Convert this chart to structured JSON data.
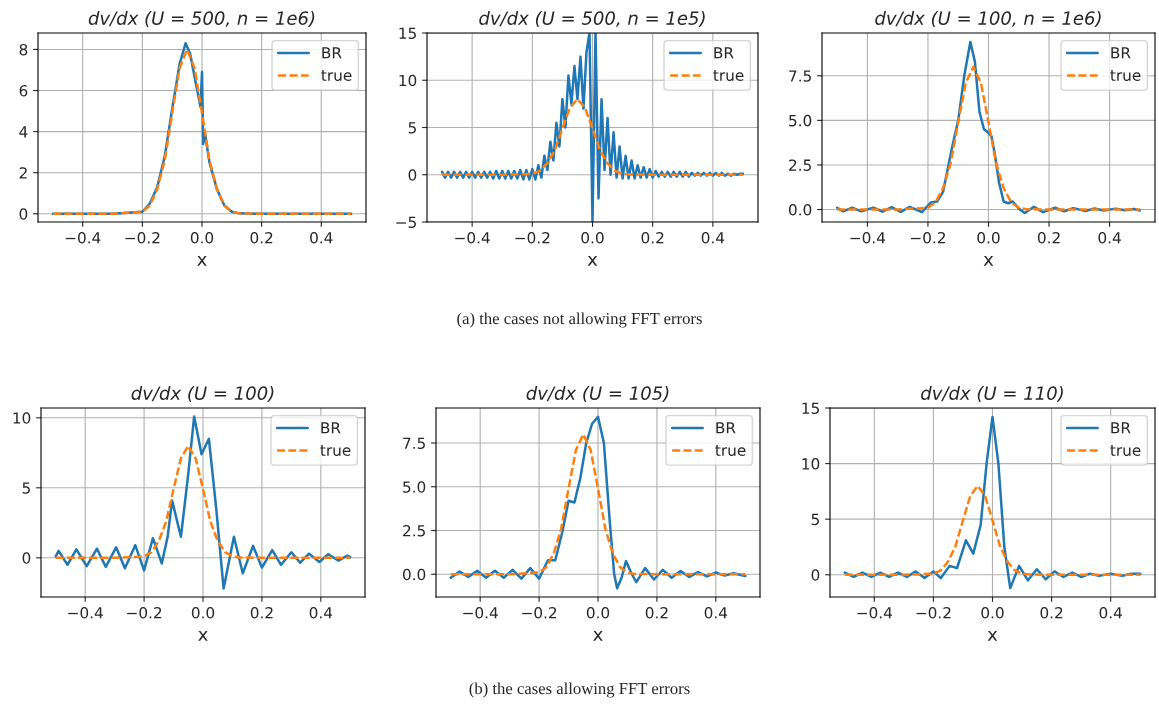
{
  "chart_data": [
    {
      "type": "line",
      "title": "dv/dx (U = 500, n = 1e6)",
      "xlabel": "x",
      "xlim": [
        -0.55,
        0.55
      ],
      "ylim": [
        -0.4,
        8.8
      ],
      "xticks": [
        {
          "value": -0.4,
          "label": "−0.4"
        },
        {
          "value": -0.2,
          "label": "−0.2"
        },
        {
          "value": 0,
          "label": "0.0"
        },
        {
          "value": 0.2,
          "label": "0.2"
        },
        {
          "value": 0.4,
          "label": "0.4"
        }
      ],
      "yticks": [
        {
          "value": 0,
          "label": "0"
        },
        {
          "value": 2,
          "label": "2"
        },
        {
          "value": 4,
          "label": "4"
        },
        {
          "value": 6,
          "label": "6"
        },
        {
          "value": 8,
          "label": "8"
        }
      ],
      "grid": true,
      "legend": "top right",
      "series": [
        {
          "name": "BR",
          "color": "#1f77b4",
          "line_style": "solid",
          "x": [
            -0.5,
            -0.3,
            -0.2,
            -0.175,
            -0.15,
            -0.125,
            -0.1,
            -0.075,
            -0.055,
            -0.04,
            -0.02,
            -0.005,
            0,
            0.004,
            0.01,
            0.025,
            0.05,
            0.075,
            0.1,
            0.125,
            0.2,
            0.3,
            0.5
          ],
          "values": [
            0,
            0,
            0.1,
            0.5,
            1.3,
            2.8,
            5.1,
            7.3,
            8.3,
            7.8,
            6.3,
            5.2,
            6.9,
            3.4,
            3.9,
            2.5,
            1.2,
            0.4,
            0.1,
            0.02,
            0,
            0,
            0
          ]
        },
        {
          "name": "true",
          "color": "#ff7f0e",
          "line_style": "dashed",
          "x": [
            -0.5,
            -0.3,
            -0.2,
            -0.175,
            -0.15,
            -0.125,
            -0.1,
            -0.075,
            -0.05,
            -0.025,
            0,
            0.025,
            0.05,
            0.075,
            0.1,
            0.125,
            0.2,
            0.3,
            0.5
          ],
          "values": [
            0,
            0,
            0.1,
            0.4,
            1.2,
            2.6,
            4.9,
            7.1,
            8,
            7.1,
            4.9,
            2.6,
            1.2,
            0.4,
            0.1,
            0.02,
            0,
            0,
            0
          ]
        }
      ]
    },
    {
      "type": "line",
      "title": "dv/dx (U = 500, n = 1e5)",
      "xlabel": "x",
      "xlim": [
        -0.55,
        0.55
      ],
      "ylim": [
        -5,
        15
      ],
      "xticks": [
        {
          "value": -0.4,
          "label": "−0.4"
        },
        {
          "value": -0.2,
          "label": "−0.2"
        },
        {
          "value": 0,
          "label": "0.0"
        },
        {
          "value": 0.2,
          "label": "0.2"
        },
        {
          "value": 0.4,
          "label": "0.4"
        }
      ],
      "yticks": [
        {
          "value": -5,
          "label": "−5"
        },
        {
          "value": 0,
          "label": "0"
        },
        {
          "value": 5,
          "label": "5"
        },
        {
          "value": 10,
          "label": "10"
        },
        {
          "value": 15,
          "label": "15"
        }
      ],
      "grid": true,
      "legend": "top right",
      "annotations": [
        "(a) the cases not allowing FFT errors"
      ],
      "series": [
        {
          "name": "BR",
          "color": "#1f77b4",
          "line_style": "solid",
          "x": [
            -0.5,
            -0.49,
            -0.48,
            -0.47,
            -0.46,
            -0.45,
            -0.44,
            -0.43,
            -0.42,
            -0.41,
            -0.4,
            -0.39,
            -0.38,
            -0.37,
            -0.36,
            -0.35,
            -0.34,
            -0.33,
            -0.32,
            -0.31,
            -0.3,
            -0.29,
            -0.28,
            -0.27,
            -0.26,
            -0.25,
            -0.24,
            -0.23,
            -0.22,
            -0.21,
            -0.2,
            -0.19,
            -0.18,
            -0.17,
            -0.16,
            -0.15,
            -0.14,
            -0.13,
            -0.12,
            -0.11,
            -0.1,
            -0.09,
            -0.08,
            -0.07,
            -0.06,
            -0.05,
            -0.04,
            -0.03,
            -0.02,
            -0.01,
            0,
            0.01,
            0.02,
            0.03,
            0.04,
            0.05,
            0.06,
            0.07,
            0.08,
            0.09,
            0.1,
            0.11,
            0.12,
            0.13,
            0.14,
            0.15,
            0.16,
            0.17,
            0.18,
            0.19,
            0.2,
            0.21,
            0.22,
            0.23,
            0.24,
            0.25,
            0.26,
            0.27,
            0.28,
            0.29,
            0.3,
            0.31,
            0.32,
            0.33,
            0.34,
            0.35,
            0.36,
            0.37,
            0.38,
            0.39,
            0.4,
            0.41,
            0.42,
            0.43,
            0.44,
            0.45,
            0.46,
            0.47,
            0.48,
            0.49,
            0.5
          ],
          "values": [
            0.3,
            -0.3,
            0.3,
            -0.3,
            0.3,
            -0.3,
            0.3,
            -0.3,
            0.3,
            -0.3,
            0.3,
            -0.3,
            0.3,
            -0.3,
            0.3,
            -0.3,
            0.3,
            -0.4,
            0.4,
            -0.4,
            0.4,
            -0.4,
            0.4,
            -0.4,
            0.4,
            -0.4,
            0.5,
            -0.5,
            0.5,
            -0.5,
            0.6,
            -0.5,
            1.0,
            -0.3,
            2.0,
            0.5,
            3.5,
            1.5,
            5.5,
            3.0,
            8.0,
            5.0,
            10.5,
            7.5,
            11.5,
            8.0,
            12.5,
            7.0,
            13.0,
            15,
            -5,
            15,
            -2.5,
            8,
            0.5,
            6,
            0,
            4.5,
            -0.3,
            3,
            -0.4,
            2,
            -0.4,
            1.5,
            -0.4,
            1.0,
            -0.3,
            0.8,
            -0.3,
            0.6,
            -0.3,
            0.4,
            -0.2,
            0.3,
            -0.2,
            0.3,
            -0.2,
            0.3,
            -0.2,
            0.3,
            -0.2,
            0.3,
            -0.2,
            0.2,
            -0.1,
            0.2,
            -0.1,
            0.2,
            -0.1,
            0.2,
            -0.1,
            0.2,
            -0.1,
            0.2,
            -0.1,
            0.1,
            -0.1,
            0.1,
            0,
            0.1,
            0.1
          ]
        },
        {
          "name": "true",
          "color": "#ff7f0e",
          "line_style": "dashed",
          "x": [
            -0.5,
            -0.3,
            -0.2,
            -0.175,
            -0.15,
            -0.125,
            -0.1,
            -0.075,
            -0.05,
            -0.025,
            0,
            0.025,
            0.05,
            0.075,
            0.1,
            0.125,
            0.2,
            0.3,
            0.5
          ],
          "values": [
            0,
            0,
            0.1,
            0.4,
            1.2,
            2.6,
            4.9,
            7.1,
            8,
            7.1,
            4.9,
            2.6,
            1.2,
            0.4,
            0.1,
            0.02,
            0,
            0,
            0
          ]
        }
      ]
    },
    {
      "type": "line",
      "title": "dv/dx (U = 100, n = 1e6)",
      "xlabel": "x",
      "xlim": [
        -0.55,
        0.55
      ],
      "ylim": [
        -0.7,
        9.9
      ],
      "xticks": [
        {
          "value": -0.4,
          "label": "−0.4"
        },
        {
          "value": -0.2,
          "label": "−0.2"
        },
        {
          "value": 0,
          "label": "0.0"
        },
        {
          "value": 0.2,
          "label": "0.2"
        },
        {
          "value": 0.4,
          "label": "0.4"
        }
      ],
      "yticks": [
        {
          "value": 0,
          "label": "0.0"
        },
        {
          "value": 2.5,
          "label": "2.5"
        },
        {
          "value": 5,
          "label": "5.0"
        },
        {
          "value": 7.5,
          "label": "7.5"
        }
      ],
      "grid": true,
      "legend": "top right",
      "series": [
        {
          "name": "BR",
          "color": "#1f77b4",
          "line_style": "solid",
          "x": [
            -0.5,
            -0.48,
            -0.45,
            -0.42,
            -0.38,
            -0.35,
            -0.32,
            -0.29,
            -0.26,
            -0.22,
            -0.19,
            -0.17,
            -0.15,
            -0.12,
            -0.1,
            -0.08,
            -0.06,
            -0.045,
            -0.03,
            -0.015,
            0.0,
            0.01,
            0.02,
            0.035,
            0.05,
            0.065,
            0.08,
            0.1,
            0.12,
            0.15,
            0.18,
            0.22,
            0.25,
            0.28,
            0.32,
            0.35,
            0.38,
            0.42,
            0.45,
            0.48,
            0.5
          ],
          "values": [
            0.1,
            -0.1,
            0.1,
            -0.1,
            0.1,
            -0.12,
            0.13,
            -0.13,
            0.15,
            -0.15,
            0.4,
            0.45,
            1.0,
            3.5,
            5.0,
            7.5,
            9.4,
            8.3,
            5.5,
            4.5,
            4.3,
            4.1,
            3.2,
            1.5,
            0.45,
            0.35,
            0.45,
            0.05,
            -0.2,
            0.15,
            -0.15,
            0.1,
            -0.1,
            0.08,
            -0.08,
            0.06,
            -0.05,
            0.05,
            -0.04,
            0.03,
            -0.05
          ]
        },
        {
          "name": "true",
          "color": "#ff7f0e",
          "line_style": "dashed",
          "x": [
            -0.5,
            -0.3,
            -0.2,
            -0.175,
            -0.15,
            -0.125,
            -0.1,
            -0.075,
            -0.05,
            -0.025,
            0,
            0.025,
            0.05,
            0.075,
            0.1,
            0.125,
            0.2,
            0.3,
            0.5
          ],
          "values": [
            0,
            0,
            0.1,
            0.4,
            1.2,
            2.6,
            4.9,
            7.1,
            8,
            7.1,
            4.9,
            2.6,
            1.2,
            0.4,
            0.1,
            0.02,
            0,
            0,
            0
          ]
        }
      ]
    },
    {
      "type": "line",
      "title": "dv/dx (U = 100)",
      "xlabel": "x",
      "xlim": [
        -0.55,
        0.55
      ],
      "ylim": [
        -2.8,
        10.7
      ],
      "xticks": [
        {
          "value": -0.4,
          "label": "−0.4"
        },
        {
          "value": -0.2,
          "label": "−0.2"
        },
        {
          "value": 0,
          "label": "0.0"
        },
        {
          "value": 0.2,
          "label": "0.2"
        },
        {
          "value": 0.4,
          "label": "0.4"
        }
      ],
      "yticks": [
        {
          "value": 0,
          "label": "0"
        },
        {
          "value": 5,
          "label": "5"
        },
        {
          "value": 10,
          "label": "10"
        }
      ],
      "grid": true,
      "legend": "top right",
      "series": [
        {
          "name": "BR",
          "color": "#1f77b4",
          "line_style": "solid",
          "x": [
            -0.5,
            -0.49,
            -0.46,
            -0.43,
            -0.395,
            -0.36,
            -0.33,
            -0.295,
            -0.265,
            -0.23,
            -0.2,
            -0.17,
            -0.14,
            -0.12,
            -0.105,
            -0.09,
            -0.075,
            -0.05,
            -0.03,
            -0.005,
            0.02,
            0.045,
            0.07,
            0.105,
            0.135,
            0.17,
            0.2,
            0.235,
            0.265,
            0.3,
            0.33,
            0.36,
            0.395,
            0.425,
            0.46,
            0.49,
            0.5
          ],
          "values": [
            0.1,
            0.5,
            -0.5,
            0.6,
            -0.6,
            0.65,
            -0.65,
            0.75,
            -0.75,
            0.9,
            -0.9,
            1.4,
            -0.4,
            1.5,
            4.1,
            2.8,
            1.5,
            6.0,
            10.1,
            7.4,
            8.5,
            3.5,
            -2.2,
            1.5,
            -1.1,
            0.85,
            -0.7,
            0.55,
            -0.5,
            0.4,
            -0.35,
            0.3,
            -0.3,
            0.25,
            -0.2,
            0.15,
            0.05
          ]
        },
        {
          "name": "true",
          "color": "#ff7f0e",
          "line_style": "dashed",
          "x": [
            -0.5,
            -0.3,
            -0.2,
            -0.175,
            -0.15,
            -0.125,
            -0.1,
            -0.075,
            -0.05,
            -0.025,
            0,
            0.025,
            0.05,
            0.075,
            0.1,
            0.125,
            0.2,
            0.3,
            0.5
          ],
          "values": [
            0,
            0,
            0.1,
            0.4,
            1.2,
            2.6,
            4.9,
            7.1,
            8,
            7.1,
            4.9,
            2.6,
            1.2,
            0.4,
            0.1,
            0.02,
            0,
            0,
            0
          ]
        }
      ]
    },
    {
      "type": "line",
      "title": "dv/dx (U = 105)",
      "xlabel": "x",
      "xlim": [
        -0.55,
        0.55
      ],
      "ylim": [
        -1.3,
        9.5
      ],
      "xticks": [
        {
          "value": -0.4,
          "label": "−0.4"
        },
        {
          "value": -0.2,
          "label": "−0.2"
        },
        {
          "value": 0,
          "label": "0.0"
        },
        {
          "value": 0.2,
          "label": "0.2"
        },
        {
          "value": 0.4,
          "label": "0.4"
        }
      ],
      "yticks": [
        {
          "value": 0,
          "label": "0.0"
        },
        {
          "value": 2.5,
          "label": "2.5"
        },
        {
          "value": 5,
          "label": "5.0"
        },
        {
          "value": 7.5,
          "label": "7.5"
        }
      ],
      "grid": true,
      "legend": "top right",
      "annotations": [
        "(b) the cases allowing FFT errors"
      ],
      "series": [
        {
          "name": "BR",
          "color": "#1f77b4",
          "line_style": "solid",
          "x": [
            -0.5,
            -0.47,
            -0.44,
            -0.41,
            -0.38,
            -0.35,
            -0.32,
            -0.29,
            -0.26,
            -0.23,
            -0.2,
            -0.17,
            -0.145,
            -0.12,
            -0.1,
            -0.08,
            -0.06,
            -0.04,
            -0.02,
            0.0,
            0.02,
            0.04,
            0.055,
            0.065,
            0.08,
            0.095,
            0.115,
            0.13,
            0.16,
            0.19,
            0.22,
            0.25,
            0.28,
            0.31,
            0.34,
            0.37,
            0.4,
            0.43,
            0.46,
            0.5
          ],
          "values": [
            -0.2,
            0.15,
            -0.15,
            0.2,
            -0.2,
            0.2,
            -0.2,
            0.25,
            -0.25,
            0.35,
            -0.25,
            0.8,
            0.8,
            2.5,
            4.2,
            4.1,
            5.5,
            7.5,
            8.6,
            9.0,
            7.5,
            3.0,
            0.0,
            -0.8,
            -0.2,
            0.75,
            0.0,
            -0.45,
            0.35,
            -0.3,
            0.25,
            -0.2,
            0.18,
            -0.15,
            0.12,
            -0.12,
            0.1,
            -0.08,
            0.06,
            -0.1
          ]
        },
        {
          "name": "true",
          "color": "#ff7f0e",
          "line_style": "dashed",
          "x": [
            -0.5,
            -0.3,
            -0.2,
            -0.175,
            -0.15,
            -0.125,
            -0.1,
            -0.075,
            -0.05,
            -0.025,
            0,
            0.025,
            0.05,
            0.075,
            0.1,
            0.125,
            0.2,
            0.3,
            0.5
          ],
          "values": [
            0,
            0,
            0.1,
            0.4,
            1.2,
            2.6,
            4.9,
            7.1,
            8,
            7.1,
            4.9,
            2.6,
            1.2,
            0.4,
            0.1,
            0.02,
            0,
            0,
            0
          ]
        }
      ]
    },
    {
      "type": "line",
      "title": "dv/dx (U = 110)",
      "xlabel": "x",
      "xlim": [
        -0.55,
        0.55
      ],
      "ylim": [
        -2,
        15
      ],
      "xticks": [
        {
          "value": -0.4,
          "label": "−0.4"
        },
        {
          "value": -0.2,
          "label": "−0.2"
        },
        {
          "value": 0,
          "label": "0.0"
        },
        {
          "value": 0.2,
          "label": "0.2"
        },
        {
          "value": 0.4,
          "label": "0.4"
        }
      ],
      "yticks": [
        {
          "value": 0,
          "label": "0"
        },
        {
          "value": 5,
          "label": "5"
        },
        {
          "value": 10,
          "label": "10"
        },
        {
          "value": 15,
          "label": "15"
        }
      ],
      "grid": true,
      "legend": "top right",
      "series": [
        {
          "name": "BR",
          "color": "#1f77b4",
          "line_style": "solid",
          "x": [
            -0.5,
            -0.47,
            -0.44,
            -0.41,
            -0.38,
            -0.35,
            -0.32,
            -0.29,
            -0.26,
            -0.23,
            -0.2,
            -0.175,
            -0.145,
            -0.12,
            -0.09,
            -0.065,
            -0.04,
            -0.02,
            0.0,
            0.02,
            0.04,
            0.06,
            0.09,
            0.12,
            0.15,
            0.18,
            0.21,
            0.24,
            0.27,
            0.3,
            0.33,
            0.36,
            0.4,
            0.44,
            0.47,
            0.5
          ],
          "values": [
            0.2,
            -0.2,
            0.2,
            -0.2,
            0.2,
            -0.2,
            0.2,
            -0.2,
            0.3,
            -0.3,
            0.3,
            -0.3,
            0.8,
            0.6,
            3.1,
            1.9,
            4.5,
            10.0,
            14.2,
            10.0,
            2.5,
            -1.2,
            0.8,
            -0.5,
            0.5,
            -0.4,
            0.3,
            -0.2,
            0.2,
            -0.2,
            0.1,
            -0.1,
            0.1,
            -0.1,
            0.1,
            0.1
          ]
        },
        {
          "name": "true",
          "color": "#ff7f0e",
          "line_style": "dashed",
          "x": [
            -0.5,
            -0.3,
            -0.2,
            -0.175,
            -0.15,
            -0.125,
            -0.1,
            -0.075,
            -0.05,
            -0.025,
            0,
            0.025,
            0.05,
            0.075,
            0.1,
            0.125,
            0.2,
            0.3,
            0.5
          ],
          "values": [
            0,
            0,
            0.1,
            0.4,
            1.2,
            2.6,
            4.9,
            7.1,
            8,
            7.1,
            4.9,
            2.6,
            1.2,
            0.4,
            0.1,
            0.02,
            0,
            0,
            0
          ]
        }
      ]
    }
  ]
}
